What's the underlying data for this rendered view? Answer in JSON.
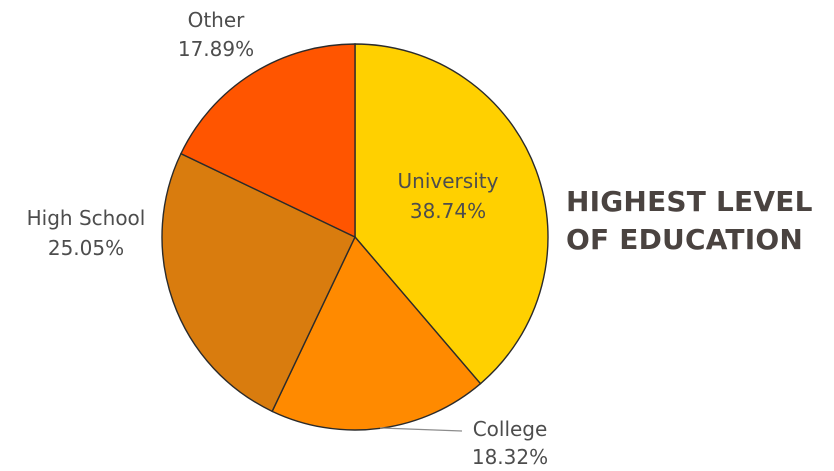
{
  "chart_data": {
    "type": "pie",
    "title_lines": [
      "HIGHEST LEVEL",
      "OF EDUCATION"
    ],
    "slices": [
      {
        "label": "University",
        "value": 38.74,
        "display": "38.74%",
        "color": "#FFD000"
      },
      {
        "label": "College",
        "value": 18.32,
        "display": "18.32%",
        "color": "#FF8A00"
      },
      {
        "label": "High School",
        "value": 25.05,
        "display": "25.05%",
        "color": "#D97C0E"
      },
      {
        "label": "Other",
        "value": 17.89,
        "display": "17.89%",
        "color": "#FF5500"
      }
    ],
    "start_angle": "12 o'clock",
    "direction": "clockwise"
  }
}
